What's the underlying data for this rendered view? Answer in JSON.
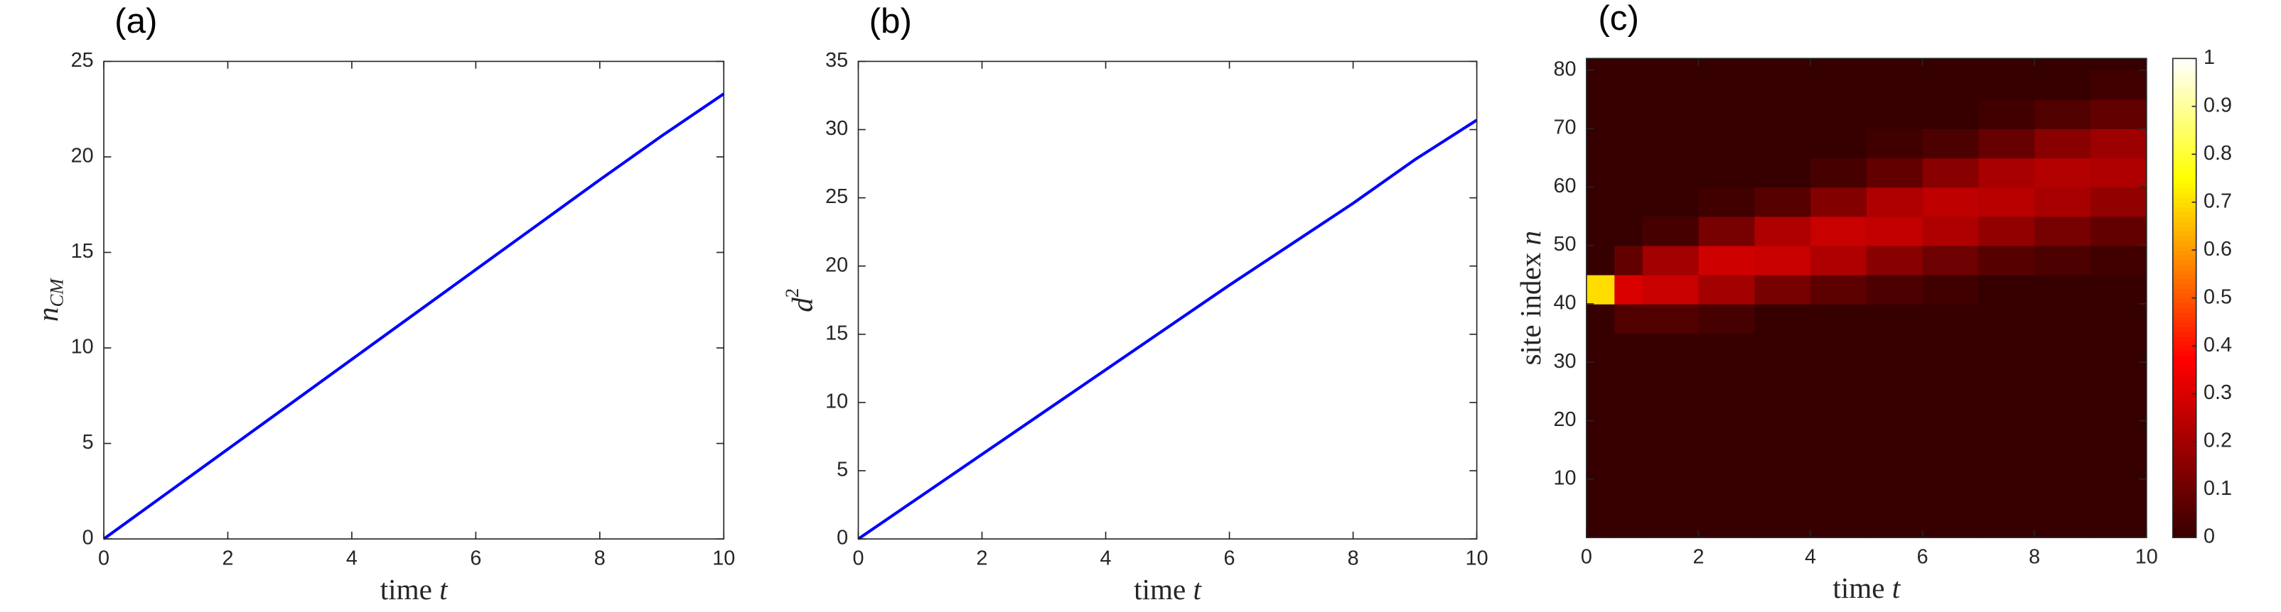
{
  "chart_data": [
    {
      "type": "line",
      "title": "(a)",
      "xlabel": {
        "base": "time ",
        "italic": "t"
      },
      "ylabel": {
        "base": "n",
        "sub": "CM"
      },
      "x": [
        0,
        1,
        2,
        3,
        4,
        5,
        6,
        7,
        8,
        9,
        10
      ],
      "values": [
        0,
        2.35,
        4.7,
        7.05,
        9.4,
        11.75,
        14.1,
        16.45,
        18.8,
        21.1,
        23.3
      ],
      "color": "#0000ff",
      "xlim": [
        0,
        10
      ],
      "ylim": [
        0,
        25
      ],
      "xticks": [
        0,
        2,
        4,
        6,
        8,
        10
      ],
      "yticks": [
        0,
        5,
        10,
        15,
        20,
        25
      ]
    },
    {
      "type": "line",
      "title": "(b)",
      "xlabel": {
        "base": "time ",
        "italic": "t"
      },
      "ylabel": {
        "base": "d",
        "sup": "2"
      },
      "x": [
        0,
        1,
        2,
        3,
        4,
        5,
        6,
        7,
        8,
        9,
        10
      ],
      "values": [
        0,
        3.1,
        6.2,
        9.3,
        12.4,
        15.5,
        18.6,
        21.6,
        24.6,
        27.8,
        30.7
      ],
      "color": "#0000ff",
      "xlim": [
        0,
        10
      ],
      "ylim": [
        0,
        35
      ],
      "xticks": [
        0,
        2,
        4,
        6,
        8,
        10
      ],
      "yticks": [
        0,
        5,
        10,
        15,
        20,
        25,
        30,
        35
      ]
    },
    {
      "type": "heatmap",
      "title": "(c)",
      "xlabel": {
        "base": "time ",
        "italic": "t"
      },
      "ylabel": {
        "base": "site index ",
        "italic": "n"
      },
      "xbins": [
        0,
        0.5,
        1,
        2,
        3,
        4,
        5,
        6,
        7,
        8,
        9,
        10
      ],
      "ybins": [
        0,
        5,
        10,
        15,
        20,
        25,
        30,
        35,
        40,
        45,
        50,
        55,
        60,
        65,
        70,
        75,
        80
      ],
      "z": [
        [
          0,
          0,
          0,
          0,
          0,
          0,
          0,
          0,
          0,
          0,
          0
        ],
        [
          0,
          0,
          0,
          0,
          0,
          0,
          0,
          0,
          0,
          0,
          0
        ],
        [
          0,
          0,
          0,
          0,
          0,
          0,
          0,
          0,
          0,
          0,
          0
        ],
        [
          0,
          0,
          0,
          0,
          0,
          0,
          0,
          0,
          0,
          0,
          0
        ],
        [
          0,
          0,
          0,
          0,
          0,
          0,
          0,
          0,
          0,
          0,
          0
        ],
        [
          0,
          0,
          0,
          0,
          0,
          0,
          0,
          0,
          0,
          0,
          0
        ],
        [
          0,
          0,
          0,
          0,
          0,
          0,
          0,
          0,
          0,
          0,
          0
        ],
        [
          0,
          0.05,
          0.05,
          0.03,
          0,
          0,
          0,
          0,
          0,
          0,
          0
        ],
        [
          0.7,
          0.3,
          0.27,
          0.2,
          0.12,
          0.07,
          0.04,
          0.02,
          0,
          0,
          0
        ],
        [
          0,
          0.08,
          0.2,
          0.28,
          0.27,
          0.22,
          0.15,
          0.1,
          0.06,
          0.04,
          0.02
        ],
        [
          0,
          0,
          0.03,
          0.12,
          0.22,
          0.27,
          0.26,
          0.22,
          0.17,
          0.12,
          0.08
        ],
        [
          0,
          0,
          0,
          0.02,
          0.06,
          0.14,
          0.22,
          0.25,
          0.24,
          0.21,
          0.17
        ],
        [
          0,
          0,
          0,
          0,
          0,
          0.03,
          0.08,
          0.15,
          0.21,
          0.23,
          0.22
        ],
        [
          0,
          0,
          0,
          0,
          0,
          0,
          0.02,
          0.04,
          0.09,
          0.15,
          0.19
        ],
        [
          0,
          0,
          0,
          0,
          0,
          0,
          0,
          0,
          0.02,
          0.05,
          0.08
        ],
        [
          0,
          0,
          0,
          0,
          0,
          0,
          0,
          0,
          0,
          0,
          0.02
        ]
      ],
      "colormap": "hot",
      "clim": [
        0,
        1
      ],
      "cticks": [
        0,
        0.1,
        0.2,
        0.3,
        0.4,
        0.5,
        0.6,
        0.7,
        0.8,
        0.9,
        1
      ],
      "xlim": [
        0,
        10
      ],
      "ylim": [
        0,
        82
      ],
      "xticks": [
        0,
        2,
        4,
        6,
        8,
        10
      ],
      "yticks": [
        10,
        20,
        30,
        40,
        50,
        60,
        70,
        80
      ]
    }
  ]
}
